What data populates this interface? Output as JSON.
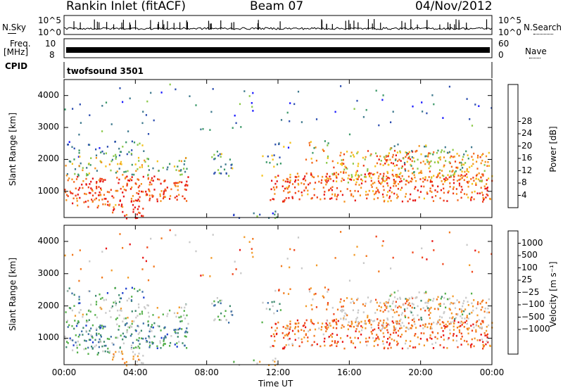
{
  "header": {
    "station": "Rankin Inlet (fitACF)",
    "beam": "Beam 07",
    "date": "04/Nov/2012"
  },
  "strips": {
    "nsky_label": "N.Sky",
    "nsky_ticks": [
      "10^5",
      "10^0"
    ],
    "nsearch_label": "N.Search",
    "freq_label_1": "Freq.",
    "freq_label_2": "[MHz]",
    "freq_ticks": [
      "10",
      "8"
    ],
    "nave_label": "Nave",
    "nave_ticks": [
      "60",
      "0"
    ],
    "cpid_label": "CPID",
    "cpid_value": "twofsound 3501"
  },
  "chart_data": [
    {
      "type": "heatmap",
      "panel": "power",
      "ylabel": "Slant Range [km]",
      "yticks": [
        1000,
        2000,
        3000,
        4000
      ],
      "ylim": [
        180,
        4500
      ],
      "xticks": [
        "00:00",
        "04:00",
        "08:00",
        "12:00",
        "16:00",
        "20:00",
        "00:00"
      ],
      "xlim_hours": [
        0,
        24
      ],
      "colorbar": {
        "label": "Power [dB]",
        "ticks": [
          4,
          8,
          12,
          16,
          20,
          24,
          28
        ],
        "colors": [
          "#1a1aff",
          "#2e4fb0",
          "#3f7a8e",
          "#3e9a6a",
          "#8cc94a",
          "#f4c21c",
          "#f5931e",
          "#f46a1d",
          "#ee3d18",
          "#e61515"
        ]
      }
    },
    {
      "type": "heatmap",
      "panel": "velocity",
      "ylabel": "Slant Range [km]",
      "yticks": [
        1000,
        2000,
        3000,
        4000
      ],
      "ylim": [
        180,
        4500
      ],
      "xticks": [
        "00:00",
        "04:00",
        "08:00",
        "12:00",
        "16:00",
        "20:00",
        "00:00"
      ],
      "xlabel": "Time UT",
      "colorbar": {
        "label": "Velocity [m s⁻¹]",
        "ticks": [
          "1000",
          "500",
          "100",
          "25",
          "−25",
          "−100",
          "−500",
          "−1000"
        ],
        "colors": [
          "#1f3fcf",
          "#3e6fa6",
          "#3f8a6e",
          "#55b04a",
          "#c9c9c9",
          "#c9c9c9",
          "#f29b2a",
          "#f2781c",
          "#f0461b",
          "#e81414"
        ]
      }
    }
  ]
}
